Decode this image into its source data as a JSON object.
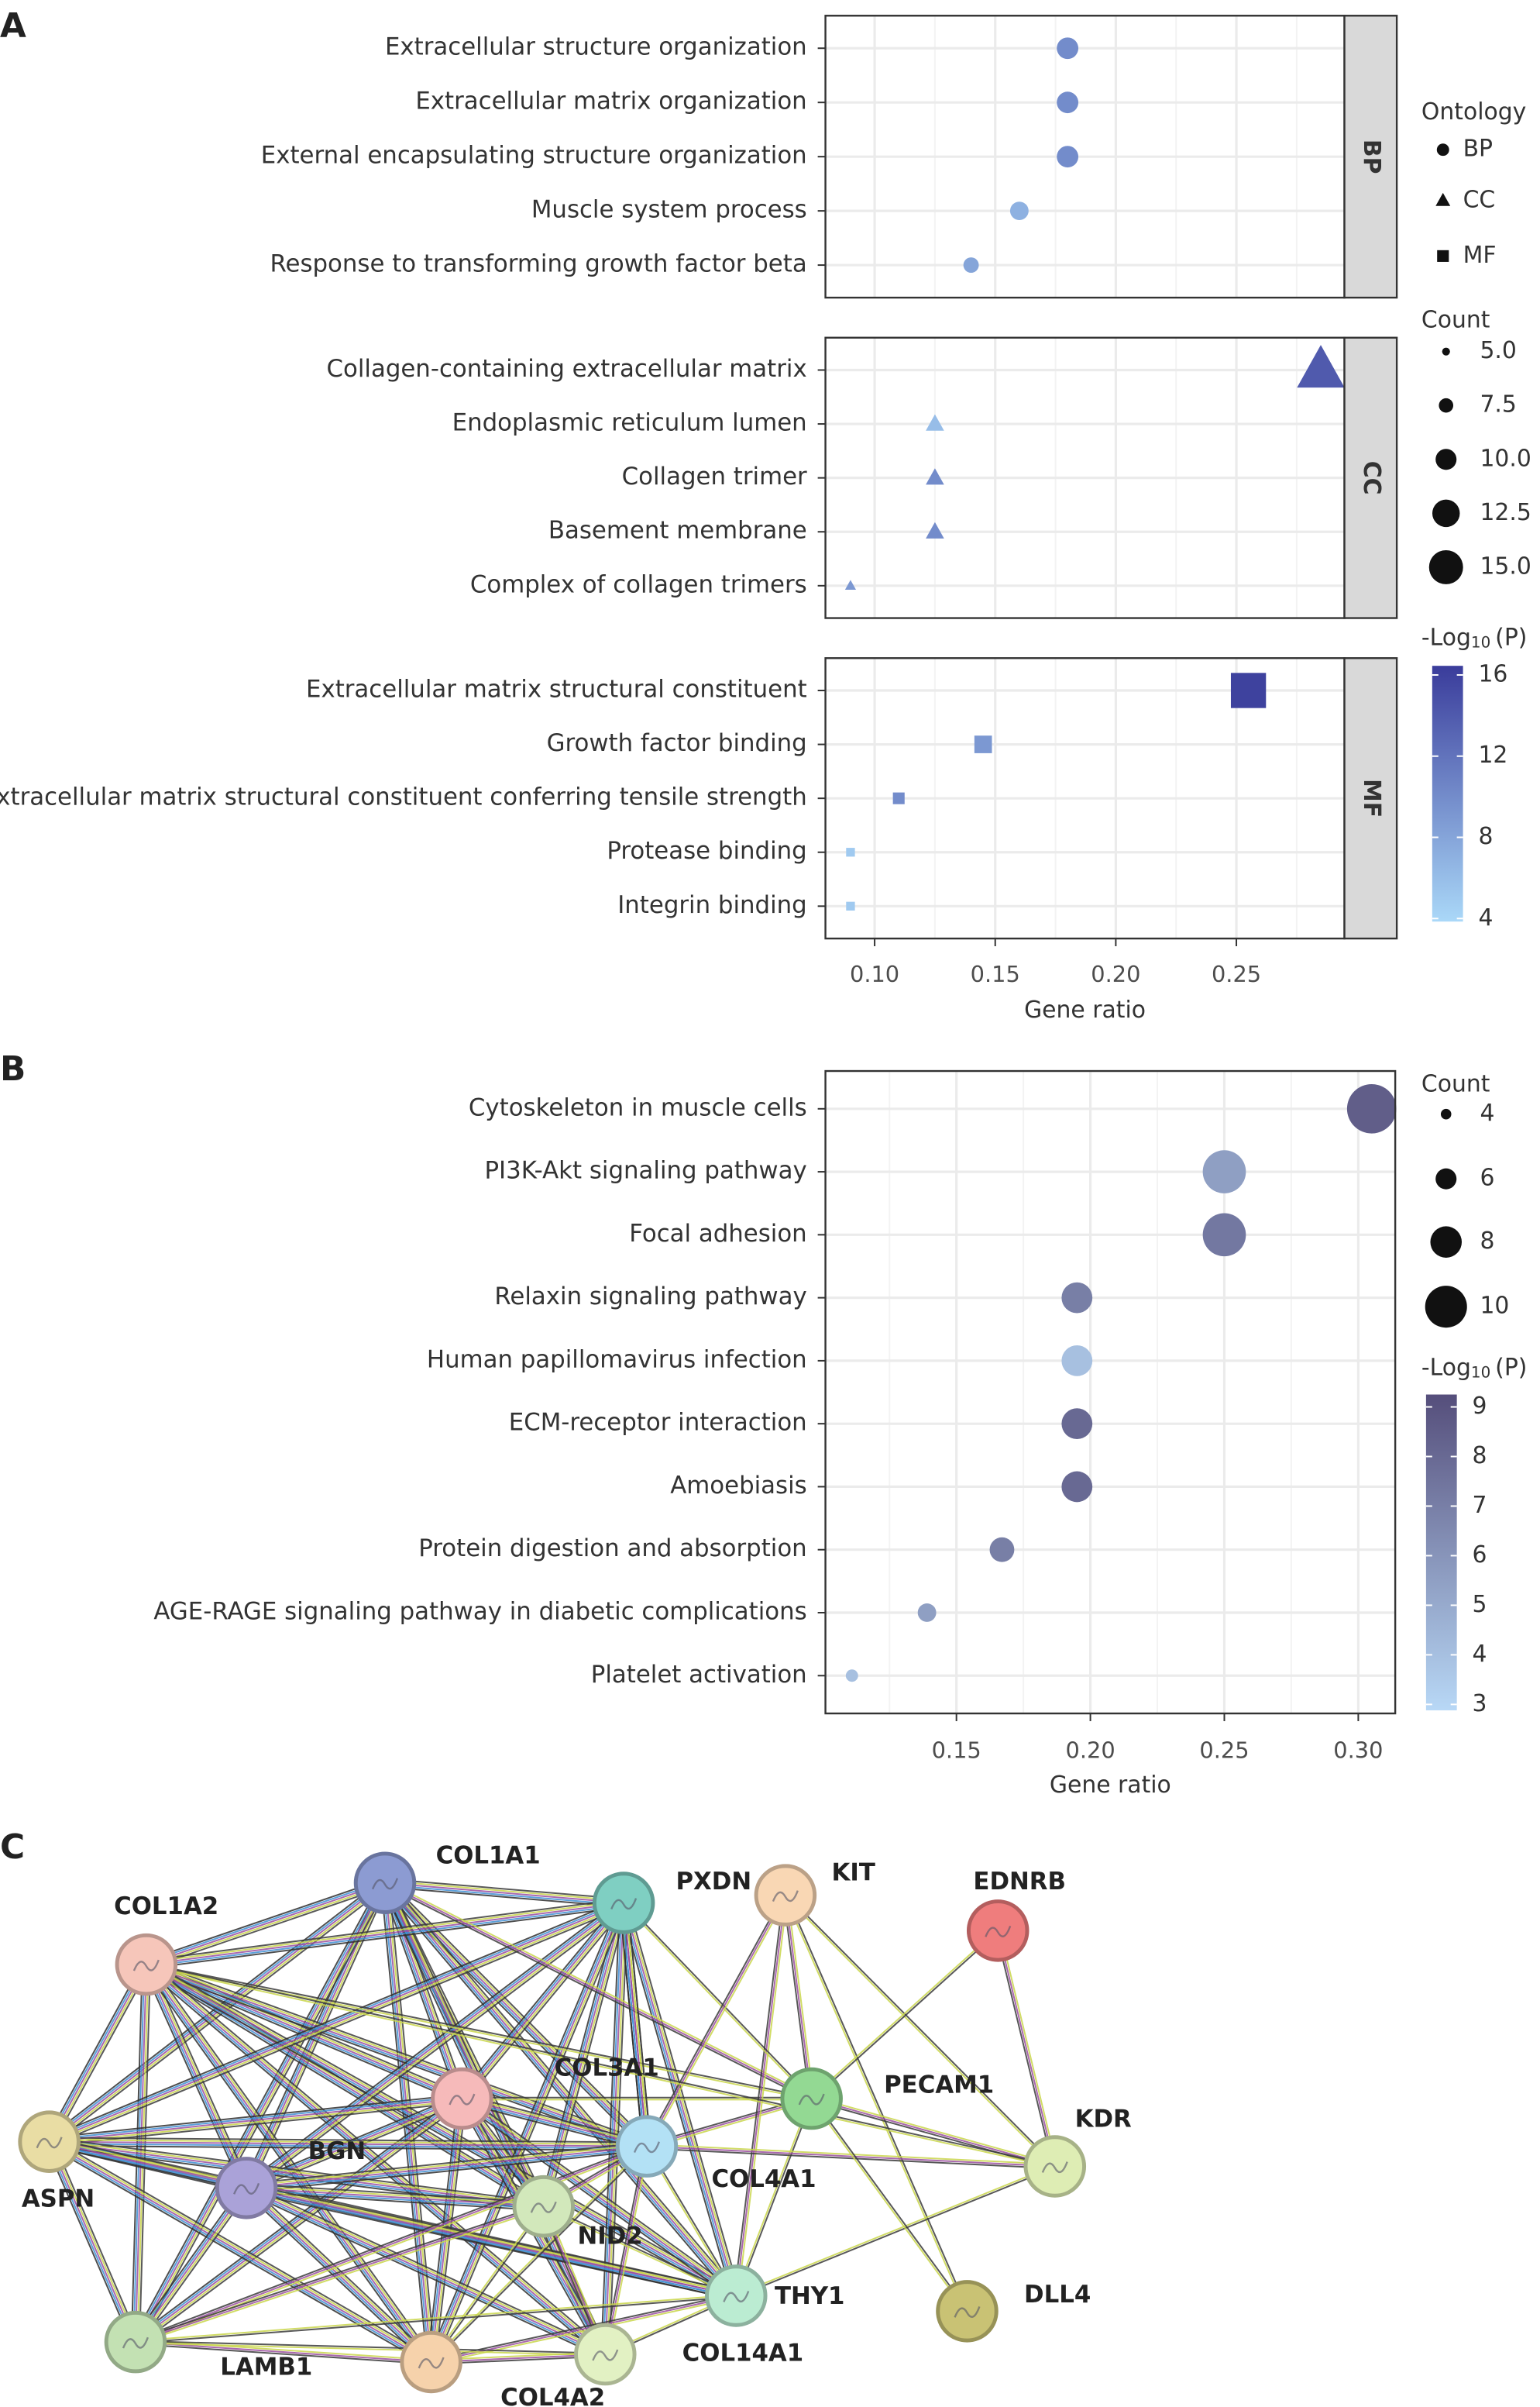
{
  "panels": [
    "A",
    "B",
    "C"
  ],
  "chart_data": [
    {
      "type": "dot",
      "xlabel": "Gene ratio",
      "xlim": [
        0.0796,
        0.2948
      ],
      "xticks": [
        {
          "value": 0.1,
          "label": "0.10"
        },
        0.15,
        {
          "value": 0.2,
          "label": "0.20"
        },
        0.25
      ],
      "grid": true,
      "facets": [
        {
          "name": "BP",
          "shape": "circle",
          "categories": [
            "Extracellular structure organization",
            "Extracellular matrix organization",
            "External encapsulating structure organization",
            "Muscle system process",
            "Response to transforming growth factor beta"
          ],
          "values": [
            0.18,
            0.18,
            0.18,
            0.16,
            0.14
          ],
          "counts": [
            9,
            9,
            9,
            8,
            7
          ],
          "log_p": [
            10,
            10,
            10,
            7,
            8
          ]
        },
        {
          "name": "CC",
          "shape": "triangle",
          "categories": [
            "Collagen-containing extracellular matrix",
            "Endoplasmic reticulum lumen",
            "Collagen trimer",
            "Basement membrane",
            "Complex of collagen trimers"
          ],
          "values": [
            0.285,
            0.125,
            0.125,
            0.125,
            0.09
          ],
          "counts": [
            15,
            7,
            7,
            7,
            5
          ],
          "log_p": [
            14,
            6,
            10,
            10,
            9
          ]
        },
        {
          "name": "MF",
          "shape": "square",
          "categories": [
            "Extracellular matrix structural constituent",
            "Growth factor binding",
            "Extracellular matrix structural constituent conferring tensile strength",
            "Protease binding",
            "Integrin binding"
          ],
          "values": [
            0.255,
            0.145,
            0.11,
            0.09,
            0.09
          ],
          "counts": [
            14,
            8,
            6,
            5,
            5
          ],
          "log_p": [
            16,
            9,
            10,
            5,
            5
          ]
        }
      ],
      "legend": {
        "shape_title": "Ontology",
        "shapes": [
          {
            "label": "BP",
            "shape": "circle"
          },
          {
            "label": "CC",
            "shape": "triangle"
          },
          {
            "label": "MF",
            "shape": "square"
          }
        ],
        "size_title": "Count",
        "size_ticks": [
          {
            "value": 5,
            "label": "5.0"
          },
          {
            "value": 7.5,
            "label": "7.5"
          },
          {
            "value": 10,
            "label": "10.0"
          },
          {
            "value": 12.5,
            "label": "12.5"
          },
          {
            "value": 15,
            "label": "15.0"
          }
        ],
        "color_title": [
          "-Log",
          "10",
          "(P)"
        ],
        "color_ticks": [
          4,
          8,
          12,
          16
        ],
        "clim": [
          3.85,
          16.45
        ],
        "colors": [
          "#aad8f8",
          "#3a3c9b"
        ]
      }
    },
    {
      "type": "dot",
      "xlabel": "Gene ratio",
      "xlim": [
        0.1011,
        0.3138
      ],
      "xticks": [
        0.15,
        {
          "value": 0.2,
          "label": "0.20"
        },
        0.25,
        {
          "value": 0.3,
          "label": "0.30"
        }
      ],
      "grid": true,
      "facets": [
        {
          "shape": "circle",
          "categories": [
            "Cytoskeleton in muscle cells",
            "PI3K-Akt signaling pathway",
            "Focal adhesion",
            "Relaxin signaling pathway",
            "Human papillomavirus infection",
            "ECM-receptor interaction",
            "Amoebiasis",
            "Protein digestion and absorption",
            "AGE-RAGE signaling pathway in diabetic complications",
            "Platelet activation"
          ],
          "values": [
            0.305,
            0.25,
            0.25,
            0.195,
            0.195,
            0.195,
            0.195,
            0.167,
            0.139,
            0.111
          ],
          "counts": [
            10,
            9,
            9,
            7,
            7,
            7,
            7,
            6,
            5,
            4
          ],
          "log_p": [
            8.5,
            5.5,
            7.3,
            7,
            4,
            8,
            8,
            7,
            5.5,
            4
          ]
        }
      ],
      "legend": {
        "size_title": "Count",
        "size_ticks": [
          4,
          6,
          8,
          10
        ],
        "color_title": [
          "-Log",
          "10",
          "(P)"
        ],
        "color_ticks": [
          3,
          4,
          5,
          6,
          7,
          8,
          9
        ],
        "clim": [
          2.88,
          9.25
        ],
        "colors": [
          "#b8d8f6",
          "#554e7b"
        ]
      }
    }
  ],
  "network": {
    "nodes": [
      {
        "label": "COL1A1",
        "color": "#8c9bd2"
      },
      {
        "label": "COL1A2",
        "color": "#f6c6ba"
      },
      {
        "label": "PXDN",
        "color": "#7fcfc2"
      },
      {
        "label": "KIT",
        "color": "#f9d7b4"
      },
      {
        "label": "EDNRB",
        "color": "#ef7d7d"
      },
      {
        "label": "COL3A1",
        "color": "#f6baba"
      },
      {
        "label": "PECAM1",
        "color": "#93d993"
      },
      {
        "label": "ASPN",
        "color": "#e9dda4"
      },
      {
        "label": "BGN",
        "color": "#aaa2d8"
      },
      {
        "label": "COL4A1",
        "color": "#b3e1f5"
      },
      {
        "label": "NID2",
        "color": "#d2e8bb"
      },
      {
        "label": "KDR",
        "color": "#deedb4"
      },
      {
        "label": "THY1",
        "color": "#bbecd2"
      },
      {
        "label": "DLL4",
        "color": "#c9c274"
      },
      {
        "label": "LAMB1",
        "color": "#c3e1b3"
      },
      {
        "label": "COL4A2",
        "color": "#f6d2ab"
      },
      {
        "label": "COL14A1",
        "color": "#e2f1c3"
      }
    ]
  }
}
